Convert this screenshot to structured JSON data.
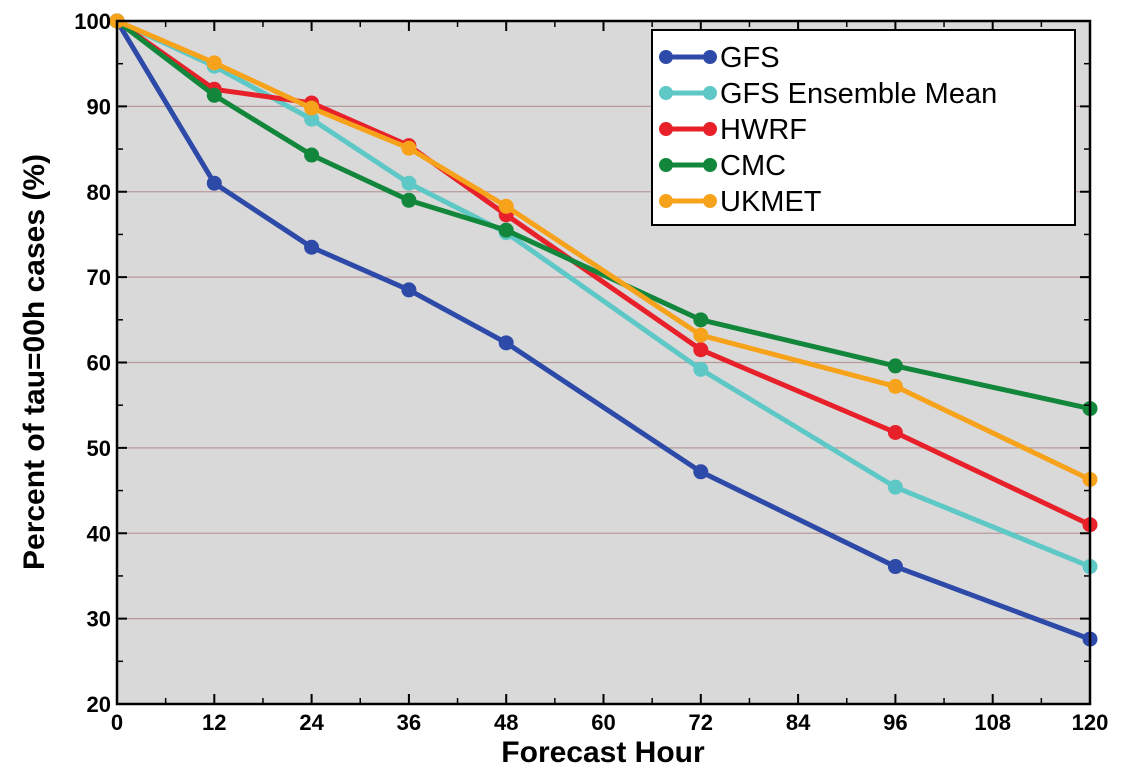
{
  "chart_data": {
    "type": "line",
    "title": "",
    "xlabel": "Forecast Hour",
    "ylabel": "Percent of tau=00h cases (%)",
    "x": [
      0,
      12,
      24,
      36,
      48,
      72,
      96,
      120
    ],
    "xticks": [
      "0",
      "12",
      "24",
      "36",
      "48",
      "60",
      "72",
      "84",
      "96",
      "108",
      "120"
    ],
    "yticks": [
      "20",
      "30",
      "40",
      "50",
      "60",
      "70",
      "80",
      "90",
      "100"
    ],
    "xlim": [
      0,
      120
    ],
    "ylim": [
      20,
      100
    ],
    "grid": "horizontal",
    "legend_position": "top-right",
    "plot_background": "#d9d9d9",
    "gridline_color": "#b89a9a",
    "series": [
      {
        "name": "GFS",
        "color": "#2e4aa8",
        "values": [
          100,
          81,
          73.5,
          68.5,
          62.3,
          47.2,
          36.1,
          27.6
        ]
      },
      {
        "name": "GFS Ensemble Mean",
        "color": "#5ec8c6",
        "values": [
          100,
          94.7,
          88.5,
          81,
          75.2,
          59.2,
          45.4,
          36.1
        ]
      },
      {
        "name": "HWRF",
        "color": "#e8202a",
        "values": [
          100,
          92,
          90.4,
          85.4,
          77.3,
          61.5,
          51.8,
          41
        ]
      },
      {
        "name": "CMC",
        "color": "#12873c",
        "values": [
          100,
          91.3,
          84.3,
          79,
          75.5,
          65,
          59.6,
          54.6
        ]
      },
      {
        "name": "UKMET",
        "color": "#f7a21b",
        "values": [
          100,
          95.1,
          89.8,
          85.1,
          78.3,
          63.2,
          57.2,
          46.3
        ]
      }
    ]
  }
}
